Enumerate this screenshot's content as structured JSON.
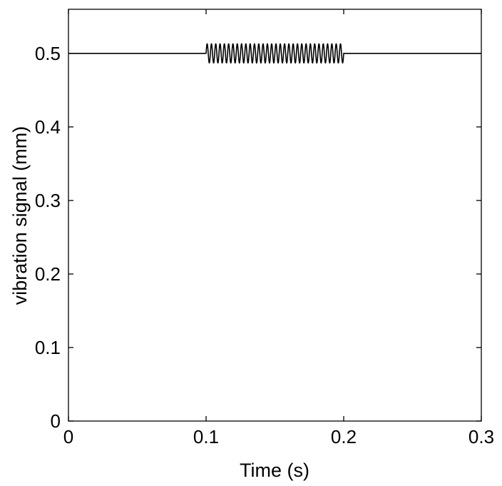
{
  "chart_data": {
    "type": "line",
    "title": "",
    "xlabel": "Time (s)",
    "ylabel": "vibration signal (mm)",
    "xlim": [
      0,
      0.3
    ],
    "ylim": [
      0,
      0.56
    ],
    "x_ticks": [
      0,
      0.1,
      0.2,
      0.3
    ],
    "x_tick_labels": [
      "0",
      "0.1",
      "0.2",
      "0.3"
    ],
    "y_ticks": [
      0,
      0.1,
      0.2,
      0.3,
      0.4,
      0.5
    ],
    "y_tick_labels": [
      "0",
      "0.1",
      "0.2",
      "0.3",
      "0.4",
      "0.5"
    ],
    "grid": false,
    "legend": "none",
    "line_color": "#000000",
    "series": [
      {
        "baseline": 0.5,
        "burst_start": 0.1,
        "burst_end": 0.2,
        "burst_amplitude": 0.013,
        "burst_frequency_hz": 320
      }
    ]
  }
}
